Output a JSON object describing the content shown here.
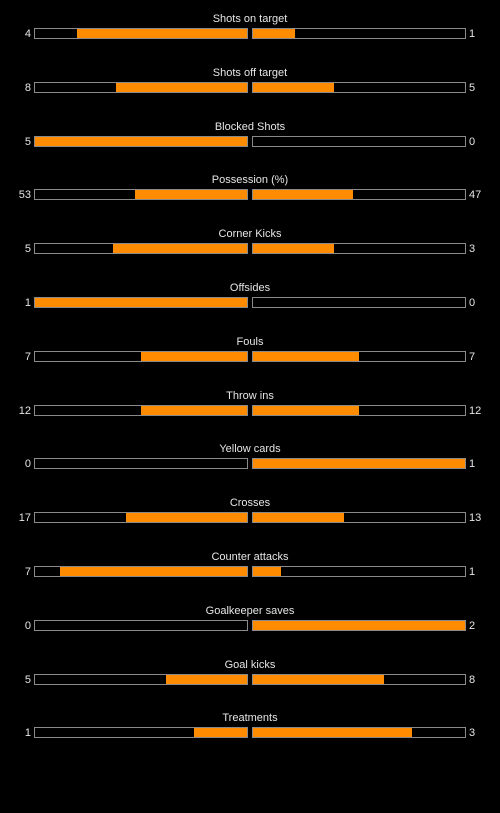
{
  "colors": {
    "background": "#000000",
    "bar_fill": "#ff8c00",
    "bar_border": "#8a8a8a",
    "text": "#e6e6e6"
  },
  "stats": [
    {
      "name": "Shots on target",
      "home": "4",
      "away": "1",
      "home_fraction": 0.8,
      "away_fraction": 0.2
    },
    {
      "name": "Shots off target",
      "home": "8",
      "away": "5",
      "home_fraction": 0.62,
      "away_fraction": 0.38
    },
    {
      "name": "Blocked Shots",
      "home": "5",
      "away": "0",
      "home_fraction": 1.0,
      "away_fraction": 0.0
    },
    {
      "name": "Possession (%)",
      "home": "53",
      "away": "47",
      "home_fraction": 0.53,
      "away_fraction": 0.47
    },
    {
      "name": "Corner Kicks",
      "home": "5",
      "away": "3",
      "home_fraction": 0.63,
      "away_fraction": 0.38
    },
    {
      "name": "Offsides",
      "home": "1",
      "away": "0",
      "home_fraction": 1.0,
      "away_fraction": 0.0
    },
    {
      "name": "Fouls",
      "home": "7",
      "away": "7",
      "home_fraction": 0.5,
      "away_fraction": 0.5
    },
    {
      "name": "Throw ins",
      "home": "12",
      "away": "12",
      "home_fraction": 0.5,
      "away_fraction": 0.5
    },
    {
      "name": "Yellow cards",
      "home": "0",
      "away": "1",
      "home_fraction": 0.0,
      "away_fraction": 1.0
    },
    {
      "name": "Crosses",
      "home": "17",
      "away": "13",
      "home_fraction": 0.57,
      "away_fraction": 0.43
    },
    {
      "name": "Counter attacks",
      "home": "7",
      "away": "1",
      "home_fraction": 0.88,
      "away_fraction": 0.13
    },
    {
      "name": "Goalkeeper saves",
      "home": "0",
      "away": "2",
      "home_fraction": 0.0,
      "away_fraction": 1.0
    },
    {
      "name": "Goal kicks",
      "home": "5",
      "away": "8",
      "home_fraction": 0.38,
      "away_fraction": 0.62
    },
    {
      "name": "Treatments",
      "home": "1",
      "away": "3",
      "home_fraction": 0.25,
      "away_fraction": 0.75
    }
  ]
}
